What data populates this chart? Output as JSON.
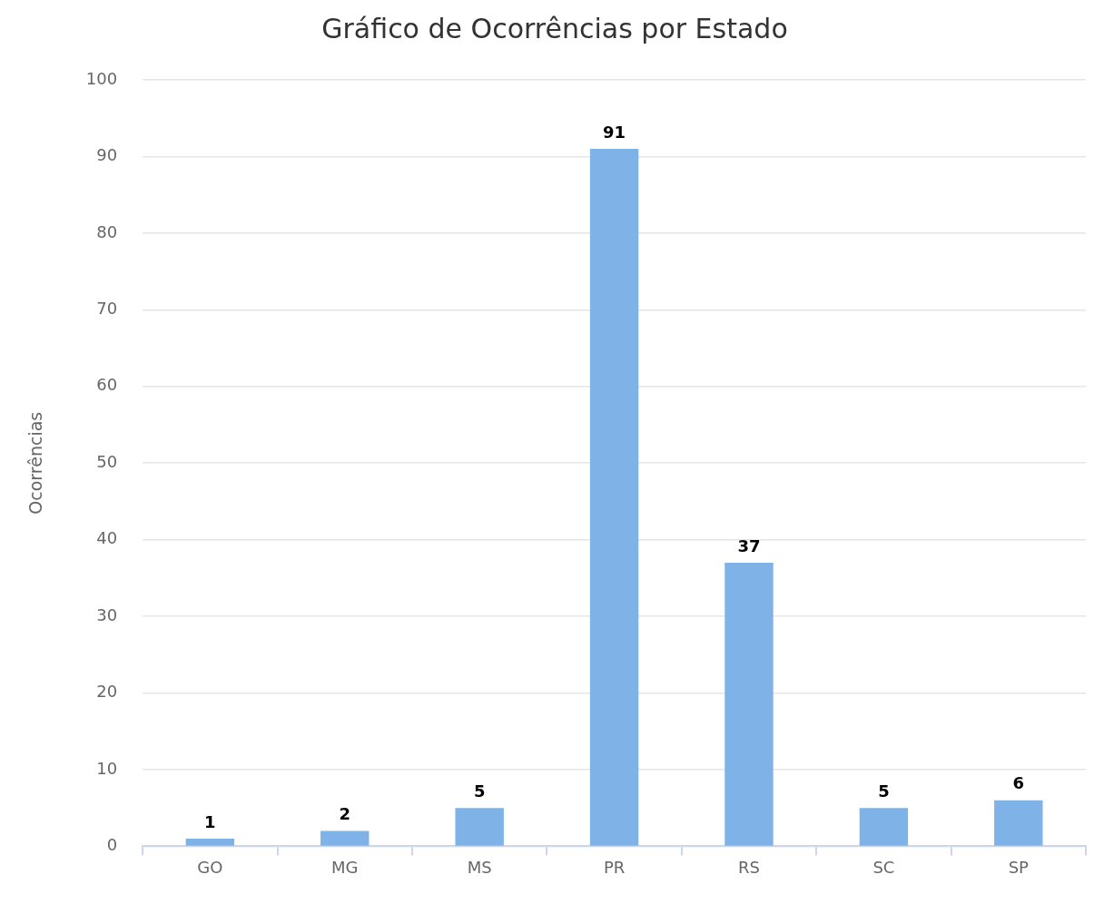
{
  "chart_data": {
    "type": "bar",
    "title": "Gráfico de Ocorrências por Estado",
    "ylabel": "Ocorrências",
    "categories": [
      "GO",
      "MG",
      "MS",
      "PR",
      "RS",
      "SC",
      "SP"
    ],
    "values": [
      1,
      2,
      5,
      91,
      37,
      5,
      6
    ],
    "color": "#7fb3e8",
    "ylim": [
      0,
      100
    ],
    "yticks": [
      0,
      10,
      20,
      30,
      40,
      50,
      60,
      70,
      80,
      90,
      100
    ],
    "grid": "y",
    "legend": false,
    "data_labels": true
  }
}
